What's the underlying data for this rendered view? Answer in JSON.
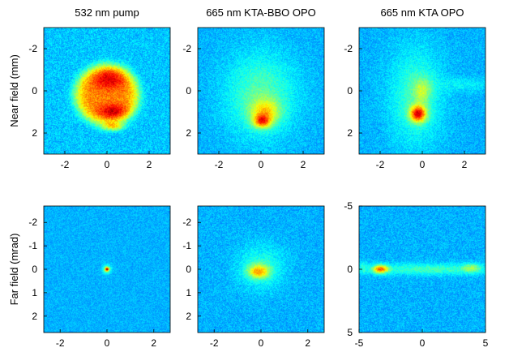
{
  "chart_data": {
    "type": "heatmap",
    "colormap": "jet",
    "column_titles": [
      "532 nm pump",
      "665 nm KTA-BBO OPO",
      "665 nm KTA OPO"
    ],
    "row_labels": [
      "Near field (mm)",
      "Far field (mrad)"
    ],
    "panels": [
      {
        "id": "near-pump",
        "row": 0,
        "col": 0,
        "xlim": [
          -3,
          3
        ],
        "ylim": [
          3,
          -3
        ],
        "y_inverted": true,
        "xticks": [
          -2,
          0,
          2
        ],
        "yticks": [
          -2,
          0,
          2
        ],
        "background_level": 0.32,
        "blobs": [
          {
            "x": 0.0,
            "y": 0.2,
            "sx": 1.55,
            "sy": 1.45,
            "amp": 0.42,
            "pow": 6
          },
          {
            "x": 0.1,
            "y": -0.6,
            "sx": 0.8,
            "sy": 0.5,
            "amp": 0.18,
            "pow": 2
          },
          {
            "x": 0.3,
            "y": 1.0,
            "sx": 0.7,
            "sy": 0.35,
            "amp": 0.2,
            "pow": 2
          },
          {
            "x": 0.3,
            "y": 1.7,
            "sx": 0.5,
            "sy": 0.2,
            "amp": 0.25,
            "pow": 2
          }
        ],
        "noise": 0.06
      },
      {
        "id": "near-kta-bbo",
        "row": 0,
        "col": 1,
        "xlim": [
          -3,
          3
        ],
        "ylim": [
          3,
          -3
        ],
        "y_inverted": true,
        "xticks": [
          -2,
          0,
          2
        ],
        "yticks": [
          -2,
          0,
          2
        ],
        "background_level": 0.3,
        "blobs": [
          {
            "x": 0.0,
            "y": 0.2,
            "sx": 1.6,
            "sy": 1.9,
            "amp": 0.16,
            "pow": 2
          },
          {
            "x": 0.2,
            "y": 1.0,
            "sx": 0.7,
            "sy": 0.6,
            "amp": 0.25,
            "pow": 2
          },
          {
            "x": 0.05,
            "y": 1.45,
            "sx": 0.4,
            "sy": 0.3,
            "amp": 0.35,
            "pow": 2
          }
        ],
        "noise": 0.05
      },
      {
        "id": "near-kta",
        "row": 0,
        "col": 2,
        "xlim": [
          -3,
          3
        ],
        "ylim": [
          3,
          -3
        ],
        "y_inverted": true,
        "xticks": [
          -2,
          0,
          2
        ],
        "yticks": [
          -2,
          0,
          2
        ],
        "background_level": 0.3,
        "blobs": [
          {
            "x": -0.3,
            "y": 0.3,
            "sx": 1.2,
            "sy": 2.2,
            "amp": 0.14,
            "pow": 2
          },
          {
            "x": 2.0,
            "y": -0.3,
            "sx": 1.4,
            "sy": 0.35,
            "amp": 0.06,
            "pow": 2
          },
          {
            "x": 0.0,
            "y": 0.0,
            "sx": 0.4,
            "sy": 0.6,
            "amp": 0.15,
            "pow": 2
          },
          {
            "x": -0.2,
            "y": 1.1,
            "sx": 0.38,
            "sy": 0.38,
            "amp": 0.5,
            "pow": 2
          }
        ],
        "noise": 0.05
      },
      {
        "id": "far-pump",
        "row": 1,
        "col": 0,
        "xlim": [
          -2.7,
          2.7
        ],
        "ylim": [
          2.7,
          -2.7
        ],
        "y_inverted": true,
        "xticks": [
          -2,
          0,
          2
        ],
        "yticks": [
          -2,
          -1,
          0,
          1,
          2
        ],
        "background_level": 0.3,
        "blobs": [
          {
            "x": 0.0,
            "y": 0.0,
            "sx": 0.18,
            "sy": 0.18,
            "amp": 0.22,
            "pow": 2
          },
          {
            "x": 0.0,
            "y": 0.0,
            "sx": 0.07,
            "sy": 0.07,
            "amp": 0.5,
            "pow": 2
          }
        ],
        "noise": 0.04
      },
      {
        "id": "far-kta-bbo",
        "row": 1,
        "col": 1,
        "xlim": [
          -2.7,
          2.7
        ],
        "ylim": [
          2.7,
          -2.7
        ],
        "y_inverted": true,
        "xticks": [
          -2,
          0,
          2
        ],
        "yticks": [
          -2,
          -1,
          0,
          1,
          2
        ],
        "background_level": 0.3,
        "blobs": [
          {
            "x": 0.0,
            "y": -0.1,
            "sx": 0.95,
            "sy": 0.9,
            "amp": 0.12,
            "pow": 2
          },
          {
            "x": -0.1,
            "y": 0.1,
            "sx": 0.45,
            "sy": 0.28,
            "amp": 0.32,
            "pow": 2
          }
        ],
        "noise": 0.05
      },
      {
        "id": "far-kta",
        "row": 1,
        "col": 2,
        "xlim": [
          -5,
          5
        ],
        "ylim": [
          5,
          -5
        ],
        "y_inverted": true,
        "xticks": [
          -5,
          0,
          5
        ],
        "yticks": [
          -5,
          0,
          5
        ],
        "background_level": 0.3,
        "blobs": [
          {
            "x": 0.5,
            "y": 0.0,
            "sx": 5.0,
            "sy": 0.45,
            "amp": 0.14,
            "pow": 2
          },
          {
            "x": -3.3,
            "y": 0.0,
            "sx": 0.6,
            "sy": 0.32,
            "amp": 0.42,
            "pow": 2
          },
          {
            "x": 3.9,
            "y": -0.1,
            "sx": 0.7,
            "sy": 0.35,
            "amp": 0.16,
            "pow": 2
          },
          {
            "x": -4.6,
            "y": -0.2,
            "sx": 0.3,
            "sy": 0.5,
            "amp": 0.08,
            "pow": 2
          }
        ],
        "noise": 0.05
      }
    ]
  }
}
